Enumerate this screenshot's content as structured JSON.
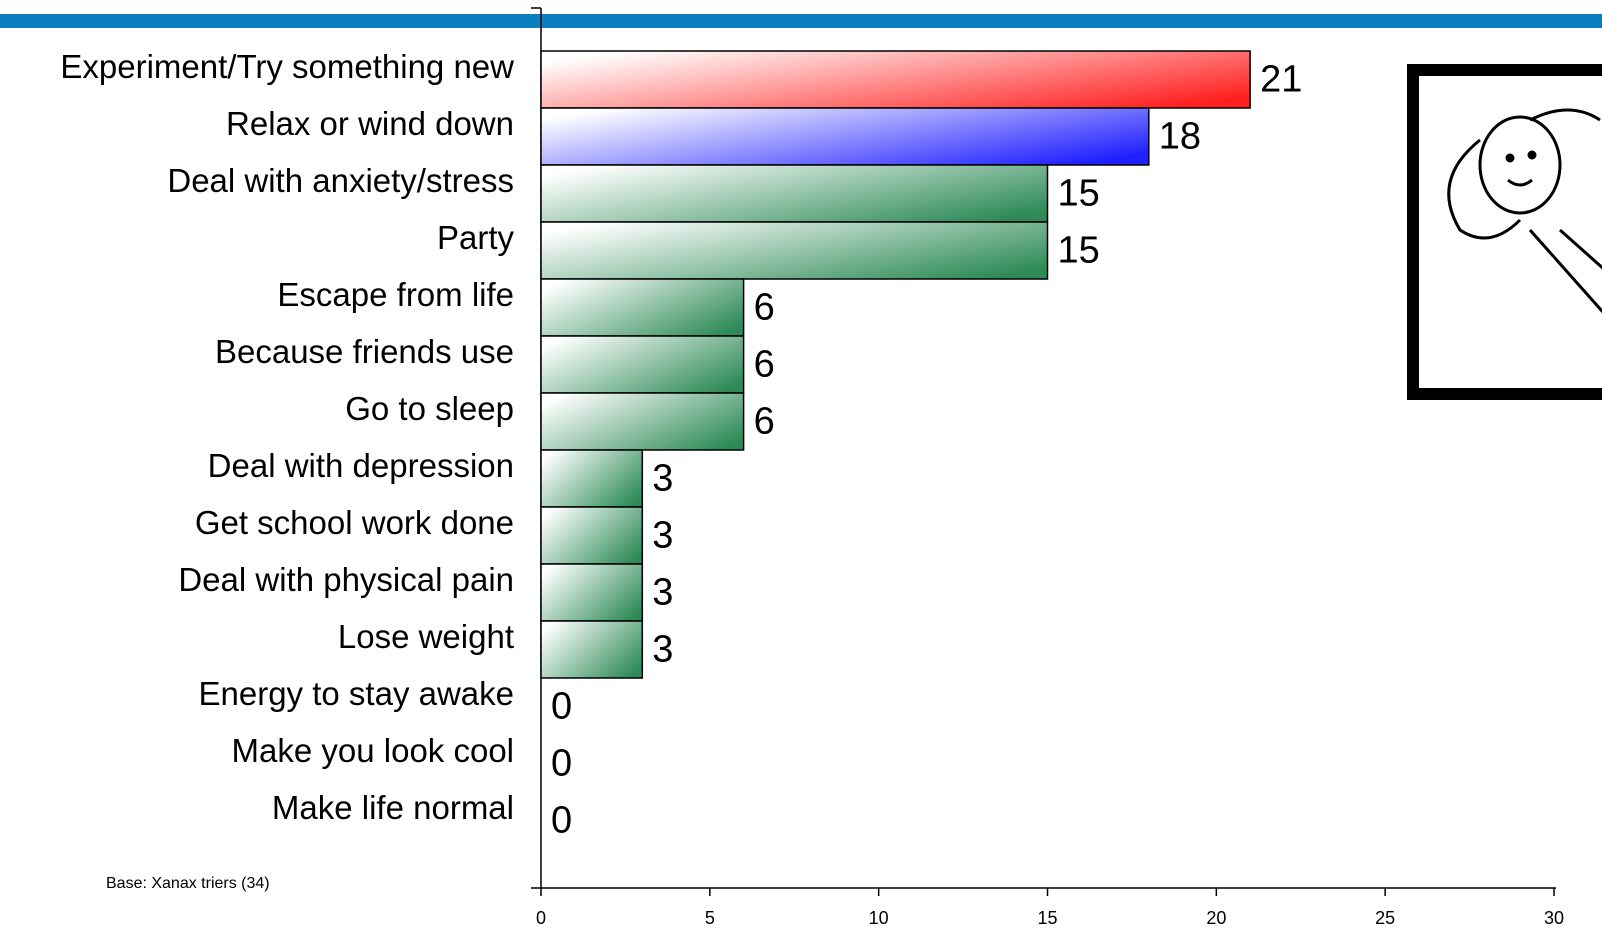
{
  "chart_data": {
    "type": "bar",
    "orientation": "horizontal",
    "categories": [
      "Experiment/Try something new",
      "Relax or wind down",
      "Deal with anxiety/stress",
      "Party",
      "Escape from life",
      "Because friends use",
      "Go to sleep",
      "Deal with depression",
      "Get school work done",
      "Deal with physical pain",
      "Lose weight",
      "Energy to stay awake",
      "Make you look cool",
      "Make life normal"
    ],
    "values": [
      21,
      18,
      15,
      15,
      6,
      6,
      6,
      3,
      3,
      3,
      3,
      0,
      0,
      0
    ],
    "colors": [
      "#ff2020",
      "#2020ff",
      "#2e8b57",
      "#2e8b57",
      "#2e8b57",
      "#2e8b57",
      "#2e8b57",
      "#2e8b57",
      "#2e8b57",
      "#2e8b57",
      "#2e8b57",
      "#2e8b57",
      "#2e8b57",
      "#2e8b57"
    ],
    "xlim": [
      0,
      30
    ],
    "xticks": [
      0,
      5,
      10,
      15,
      20,
      25,
      30
    ],
    "note": "Base: Xanax triers (34)"
  }
}
